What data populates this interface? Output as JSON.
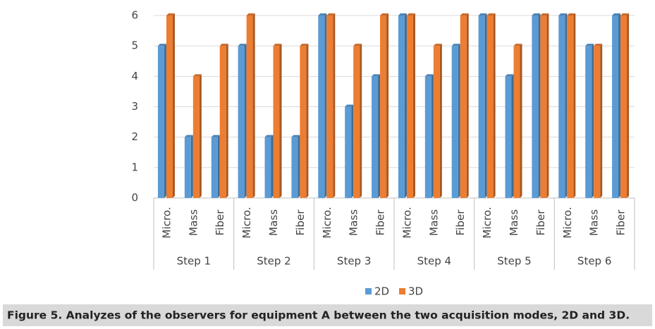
{
  "chart_data": {
    "type": "bar",
    "categories": [
      "Micro.",
      "Mass",
      "Fiber",
      "Micro.",
      "Mass",
      "Fiber",
      "Micro.",
      "Mass",
      "Fiber",
      "Micro.",
      "Mass",
      "Fiber",
      "Micro.",
      "Mass",
      "Fiber",
      "Micro.",
      "Mass",
      "Fiber"
    ],
    "groups": [
      "Step 1",
      "Step 2",
      "Step 3",
      "Step 4",
      "Step 5",
      "Step 6"
    ],
    "series": [
      {
        "name": "2D",
        "color": "#5b9bd5",
        "values": [
          5,
          2,
          2,
          5,
          2,
          2,
          6,
          3,
          4,
          6,
          4,
          5,
          6,
          4,
          6,
          6,
          5,
          6
        ]
      },
      {
        "name": "3D",
        "color": "#ed7d31",
        "values": [
          6,
          4,
          5,
          6,
          5,
          5,
          6,
          5,
          6,
          6,
          5,
          6,
          6,
          5,
          6,
          6,
          5,
          6
        ]
      }
    ],
    "ylim": [
      0,
      6
    ],
    "yticks": [
      0,
      1,
      2,
      3,
      4,
      5,
      6
    ],
    "grid": true,
    "legend": "bottom",
    "caption": "Figure 5. Analyzes of the observers for equipment A between the two acquisition modes, 2D and 3D."
  }
}
